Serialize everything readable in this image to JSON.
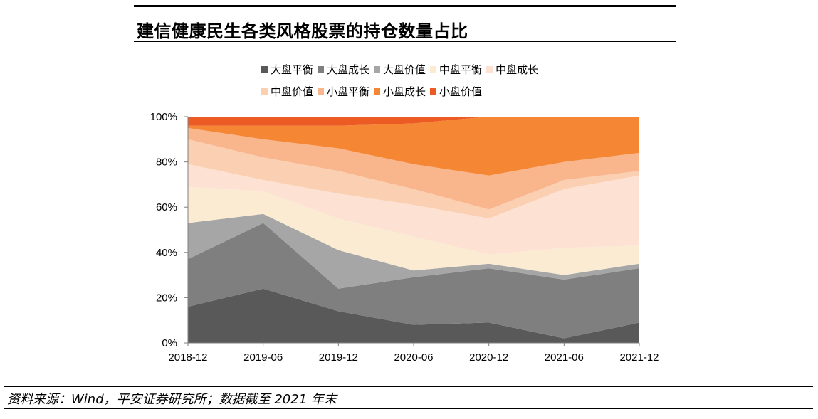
{
  "title": "建信健康民生各类风格股票的持仓数量占比",
  "source": "资料来源：Wind，平安证券研究所；数据截至 2021 年末",
  "chart_data": {
    "type": "area",
    "stacked": true,
    "percent": true,
    "categories": [
      "2018-12",
      "2019-06",
      "2019-12",
      "2020-06",
      "2020-12",
      "2021-06",
      "2021-12"
    ],
    "y_ticks": [
      "0%",
      "20%",
      "40%",
      "60%",
      "80%",
      "100%"
    ],
    "ylim": [
      0,
      100
    ],
    "legend_position": "top",
    "series": [
      {
        "name": "大盘平衡",
        "color": "#595959",
        "values": [
          16,
          24,
          14,
          8,
          9,
          2,
          9
        ]
      },
      {
        "name": "大盘成长",
        "color": "#7f7f7f",
        "values": [
          21,
          29,
          10,
          21,
          24,
          26,
          24
        ]
      },
      {
        "name": "大盘价值",
        "color": "#a6a6a6",
        "values": [
          16,
          4,
          17,
          3,
          2,
          2,
          2
        ]
      },
      {
        "name": "中盘平衡",
        "color": "#faebd2",
        "values": [
          16,
          10,
          14,
          15,
          4,
          12,
          8
        ]
      },
      {
        "name": "中盘成长",
        "color": "#fde2d4",
        "values": [
          10,
          5,
          11,
          14,
          16,
          26,
          31
        ]
      },
      {
        "name": "中盘价值",
        "color": "#fbcfb1",
        "values": [
          11,
          10,
          10,
          7,
          4,
          4,
          2
        ]
      },
      {
        "name": "小盘平衡",
        "color": "#f9b58c",
        "values": [
          5,
          8,
          10,
          11,
          15,
          8,
          8
        ]
      },
      {
        "name": "小盘成长",
        "color": "#f58634",
        "values": [
          1,
          6,
          10,
          18,
          26,
          20,
          16
        ]
      },
      {
        "name": "小盘价值",
        "color": "#ec5b24",
        "values": [
          4,
          4,
          4,
          3,
          0,
          0,
          0
        ]
      }
    ]
  }
}
